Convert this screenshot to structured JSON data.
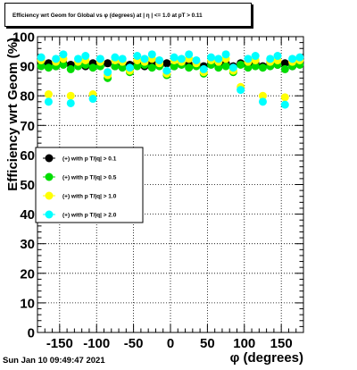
{
  "title": "Efficiency wrt Geom for Global vs φ (degrees) at | η | <= 1.0 at pT > 0.11",
  "timestamp": "Sun Jan 10 09:49:47 2021",
  "chart_data": {
    "type": "scatter",
    "xlabel": "φ (degrees)",
    "ylabel": "Efficiency wrt Geom (%)",
    "xlim": [
      -180,
      180
    ],
    "ylim": [
      0,
      100
    ],
    "xticks": [
      -150,
      -100,
      -50,
      0,
      50,
      100,
      150
    ],
    "yticks": [
      0,
      10,
      20,
      30,
      40,
      50,
      60,
      70,
      80,
      90,
      100
    ],
    "grid": true,
    "legend_position": "left-middle",
    "series": [
      {
        "name": "(+) with p T/|q| > 0.1",
        "color": "#000000",
        "x": [
          -175,
          -165,
          -155,
          -145,
          -135,
          -125,
          -115,
          -105,
          -95,
          -85,
          -75,
          -65,
          -55,
          -45,
          -35,
          -25,
          -15,
          -5,
          5,
          15,
          25,
          35,
          45,
          55,
          65,
          75,
          85,
          95,
          105,
          115,
          125,
          135,
          145,
          155,
          165,
          175
        ],
        "y": [
          90.5,
          91,
          90,
          91,
          90.5,
          91,
          90,
          91,
          90.5,
          91,
          90,
          91,
          90.5,
          91,
          90,
          91,
          90.5,
          91,
          90,
          91,
          90.5,
          91,
          90,
          91,
          90.5,
          91,
          90,
          91,
          90.5,
          91,
          90,
          91,
          90.5,
          91,
          90,
          91
        ]
      },
      {
        "name": "(+) with p T/|q| > 0.5",
        "color": "#00dd00",
        "x": [
          -175,
          -165,
          -155,
          -145,
          -135,
          -125,
          -115,
          -105,
          -95,
          -85,
          -75,
          -65,
          -55,
          -45,
          -35,
          -25,
          -15,
          -5,
          5,
          15,
          25,
          35,
          45,
          55,
          65,
          75,
          85,
          95,
          105,
          115,
          125,
          135,
          145,
          155,
          165,
          175
        ],
        "y": [
          90,
          89.5,
          90,
          90.5,
          89,
          90,
          90.5,
          89.5,
          90,
          86,
          90,
          89.5,
          88,
          90,
          90.5,
          89.5,
          90,
          87,
          90,
          90.5,
          89.5,
          90,
          87.5,
          90.5,
          89.5,
          90,
          88,
          90.5,
          89.5,
          90,
          89.5,
          90,
          90.5,
          89,
          90,
          90.5
        ]
      },
      {
        "name": "(+) with p T/|q| > 1.0",
        "color": "#ffff00",
        "x": [
          -175,
          -165,
          -155,
          -145,
          -135,
          -125,
          -115,
          -105,
          -95,
          -85,
          -75,
          -65,
          -55,
          -45,
          -35,
          -25,
          -15,
          -5,
          5,
          15,
          25,
          35,
          45,
          55,
          65,
          75,
          85,
          95,
          105,
          115,
          125,
          135,
          145,
          155,
          165,
          175
        ],
        "y": [
          92,
          80.5,
          91.5,
          92.5,
          80,
          91.5,
          92,
          80.5,
          91.5,
          87,
          92,
          91.5,
          88.5,
          92,
          91.5,
          92.5,
          91,
          87.5,
          92,
          91.5,
          92.5,
          91,
          88,
          92,
          91.5,
          92.5,
          88.5,
          83,
          91.5,
          92,
          80,
          91.5,
          92,
          79.5,
          91.5,
          92
        ]
      },
      {
        "name": "(+) with p T/|q| > 2.0",
        "color": "#00ffff",
        "x": [
          -175,
          -165,
          -155,
          -145,
          -135,
          -125,
          -115,
          -105,
          -95,
          -85,
          -75,
          -65,
          -55,
          -45,
          -35,
          -25,
          -15,
          -5,
          5,
          15,
          25,
          35,
          45,
          55,
          65,
          75,
          85,
          95,
          105,
          115,
          125,
          135,
          145,
          155,
          165,
          175
        ],
        "y": [
          93,
          78,
          92.5,
          94,
          77.5,
          92.5,
          93.5,
          79,
          92.5,
          88,
          93,
          92.5,
          89.5,
          93.5,
          92.5,
          94,
          92,
          88.5,
          93,
          92.5,
          94,
          92,
          89,
          93,
          92.5,
          94,
          89.5,
          82,
          92.5,
          93.5,
          78,
          92.5,
          93.5,
          77,
          92.5,
          93
        ]
      }
    ]
  }
}
